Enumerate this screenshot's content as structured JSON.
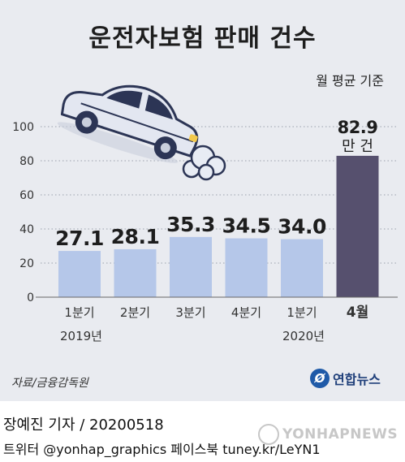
{
  "title": "운전자보험 판매 건수",
  "unit_note": "월 평균 기준",
  "last_bar_unit": "만 건",
  "source": "자료/금융감독원",
  "logo_text": "연합뉴스",
  "logo_mark": "Ø",
  "reporter": "장예진 기자 / 20200518",
  "social": "트위터 @yonhap_graphics  페이스북 tuney.kr/LeYN1",
  "watermark": "YONHAPNEWS",
  "colors": {
    "bar": "#b5c7e9",
    "bar_highlight": "#56506e",
    "background": "#e9ebf0"
  },
  "icons": [
    "car-exhaust-icon"
  ],
  "chart_data": {
    "type": "bar",
    "title": "운전자보험 판매 건수",
    "categories": [
      [
        "1분기",
        "2019년"
      ],
      [
        "2분기",
        ""
      ],
      [
        "3분기",
        ""
      ],
      [
        "4분기",
        ""
      ],
      [
        "1분기",
        "2020년"
      ],
      [
        "4월",
        ""
      ]
    ],
    "values": [
      27.1,
      28.1,
      35.3,
      34.5,
      34.0,
      82.9
    ],
    "value_labels": [
      "27.1",
      "28.1",
      "35.3",
      "34.5",
      "34.0",
      "82.9"
    ],
    "ylim": [
      0,
      100
    ],
    "yticks": [
      0,
      20,
      40,
      60,
      80,
      100
    ],
    "grid": "dotted",
    "highlight_index": 5
  }
}
